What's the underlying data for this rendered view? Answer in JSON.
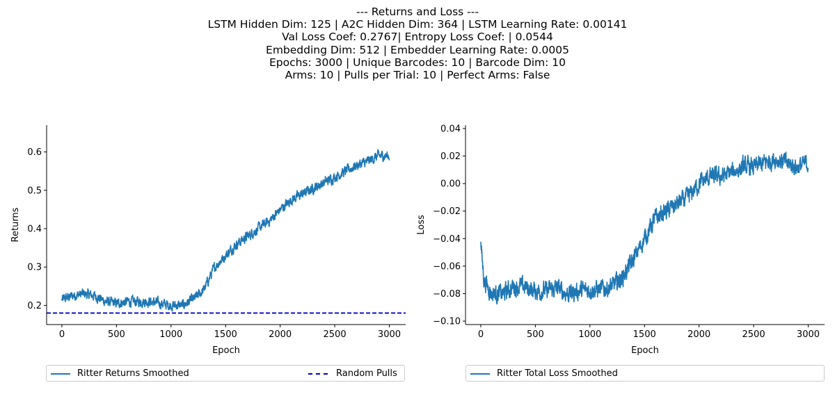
{
  "suptitle": [
    "--- Returns and Loss ---",
    "LSTM Hidden Dim: 125 | A2C Hidden Dim: 364 | LSTM Learning Rate: 0.00141",
    "Val Loss Coef: 0.2767| Entropy Loss Coef: | 0.0544",
    "Embedding Dim: 512 | Embedder Learning Rate: 0.0005",
    " Epochs: 3000 | Unique Barcodes: 10 | Barcode Dim: 10",
    "Arms: 10 | Pulls per Trial: 10 | Perfect Arms: False"
  ],
  "colors": {
    "line": "#1f77b4",
    "random": "#0000cd"
  },
  "chart_data": [
    {
      "type": "line",
      "xlabel": "Epoch",
      "ylabel": "Returns",
      "xlim": [
        -140,
        3150
      ],
      "ylim": [
        0.15,
        0.67
      ],
      "xticks": [
        0,
        500,
        1000,
        1500,
        2000,
        2500,
        3000
      ],
      "yticks": [
        0.2,
        0.3,
        0.4,
        0.5,
        0.6
      ],
      "ytick_labels": [
        "0.2",
        "0.3",
        "0.4",
        "0.5",
        "0.6"
      ],
      "legend_position": "below",
      "series": [
        {
          "name": "Ritter Returns Smoothed",
          "style": "solid",
          "x": [
            0,
            100,
            200,
            300,
            400,
            500,
            600,
            700,
            800,
            900,
            1000,
            1100,
            1200,
            1300,
            1400,
            1500,
            1600,
            1700,
            1800,
            1900,
            2000,
            2100,
            2200,
            2300,
            2400,
            2500,
            2600,
            2700,
            2800,
            2900,
            3000
          ],
          "y": [
            0.215,
            0.225,
            0.23,
            0.225,
            0.21,
            0.205,
            0.21,
            0.21,
            0.21,
            0.205,
            0.2,
            0.2,
            0.215,
            0.24,
            0.3,
            0.33,
            0.36,
            0.38,
            0.4,
            0.42,
            0.45,
            0.475,
            0.49,
            0.505,
            0.52,
            0.535,
            0.55,
            0.565,
            0.575,
            0.59,
            0.59
          ],
          "noise": 0.012
        },
        {
          "name": "Random Pulls",
          "style": "dashed",
          "hline": 0.18
        }
      ]
    },
    {
      "type": "line",
      "xlabel": "Epoch",
      "ylabel": "Loss",
      "xlim": [
        -140,
        3150
      ],
      "ylim": [
        -0.1025,
        0.0425
      ],
      "xticks": [
        0,
        500,
        1000,
        1500,
        2000,
        2500,
        3000
      ],
      "yticks": [
        -0.1,
        -0.08,
        -0.06,
        -0.04,
        -0.02,
        0.0,
        0.02,
        0.04
      ],
      "ytick_labels": [
        "−0.10",
        "−0.08",
        "−0.06",
        "−0.04",
        "−0.02",
        "0.00",
        "0.02",
        "0.04"
      ],
      "legend_position": "below",
      "series": [
        {
          "name": "Ritter Total Loss Smoothed",
          "style": "solid",
          "x": [
            0,
            30,
            100,
            200,
            300,
            400,
            500,
            600,
            700,
            800,
            900,
            1000,
            1100,
            1200,
            1300,
            1400,
            1500,
            1600,
            1700,
            1800,
            1900,
            2000,
            2100,
            2200,
            2300,
            2400,
            2500,
            2600,
            2700,
            2800,
            2900,
            3000
          ],
          "y": [
            -0.045,
            -0.07,
            -0.08,
            -0.08,
            -0.075,
            -0.075,
            -0.078,
            -0.078,
            -0.076,
            -0.08,
            -0.078,
            -0.077,
            -0.077,
            -0.075,
            -0.068,
            -0.055,
            -0.04,
            -0.025,
            -0.02,
            -0.015,
            -0.01,
            0.0,
            0.005,
            0.005,
            0.008,
            0.012,
            0.012,
            0.015,
            0.018,
            0.015,
            0.012,
            0.015
          ],
          "noise": 0.006
        }
      ]
    }
  ]
}
